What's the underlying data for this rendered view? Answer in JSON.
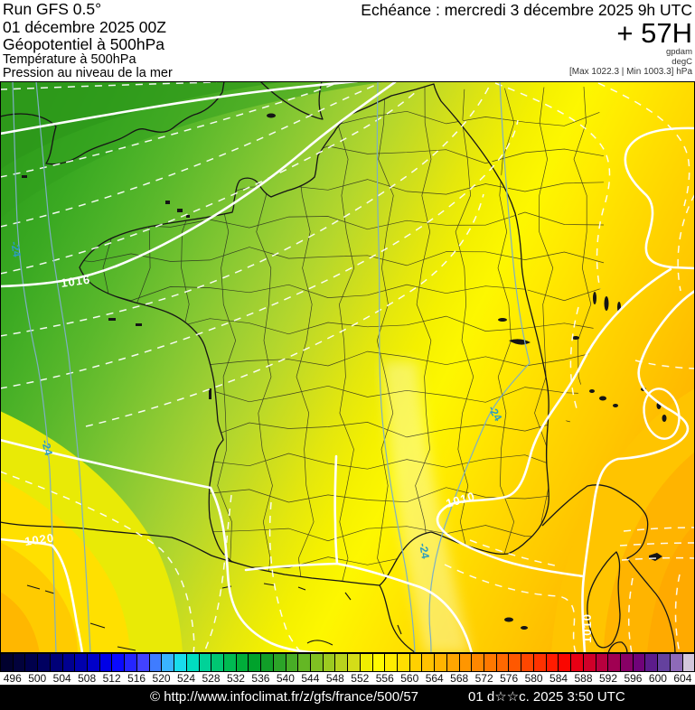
{
  "header": {
    "model_line": "Run GFS 0.5°",
    "run_line": "01 décembre 2025 00Z",
    "field1": "Géopotentiel à 500hPa",
    "field2": "Température à 500hPa",
    "field3": "Pression au niveau de la mer",
    "echeance": "Echéance : mercredi 3 décembre 2025 9h UTC",
    "forecast_hour": "+ 57H",
    "unit_primary": "gpdam",
    "unit_secondary": "degC",
    "minmax": "[Max 1022.3 | Min 1003.3] hPa"
  },
  "map": {
    "isobar_label_1016": "1016",
    "isobar_label_1020": "1020",
    "isobar_label_1010_a": "1010",
    "isobar_label_1010_b": "1010",
    "temp_label": "-24"
  },
  "colorbar": {
    "unit_values": [
      "496",
      "500",
      "504",
      "508",
      "512",
      "516",
      "520",
      "524",
      "528",
      "532",
      "536",
      "540",
      "544",
      "548",
      "552",
      "556",
      "560",
      "564",
      "568",
      "572",
      "576",
      "580",
      "584",
      "588",
      "592",
      "596",
      "600",
      "604"
    ],
    "cell_colors": [
      "#01012e",
      "#02023c",
      "#00004c",
      "#000060",
      "#000077",
      "#000090",
      "#0000ac",
      "#0000c9",
      "#0000e6",
      "#0a0aff",
      "#2525ff",
      "#4242ff",
      "#3f7cff",
      "#3ab4ff",
      "#19dcec",
      "#00dcc0",
      "#00d298",
      "#00c672",
      "#00ba52",
      "#00ae3a",
      "#00a22c",
      "#119e28",
      "#2ca428",
      "#48ad26",
      "#64b724",
      "#80c022",
      "#9cca20",
      "#b8d31d",
      "#d4dd18",
      "#f0ee00",
      "#fffa00",
      "#ffec00",
      "#ffde00",
      "#ffd000",
      "#ffc200",
      "#ffb400",
      "#ffa500",
      "#ff9600",
      "#ff8700",
      "#ff7800",
      "#ff6800",
      "#ff5800",
      "#ff4600",
      "#ff3200",
      "#ff1c00",
      "#fa0600",
      "#e80014",
      "#d00029",
      "#b8003e",
      "#a00052",
      "#880066",
      "#700379",
      "#5c1c8b",
      "#64419e",
      "#8e6ab8",
      "#d3c7dc"
    ]
  },
  "footer": {
    "copyright": "© http://www.infoclimat.fr/z/gfs/france/500/57",
    "datetime": "01 d☆☆c. 2025  3:50 UTC"
  }
}
